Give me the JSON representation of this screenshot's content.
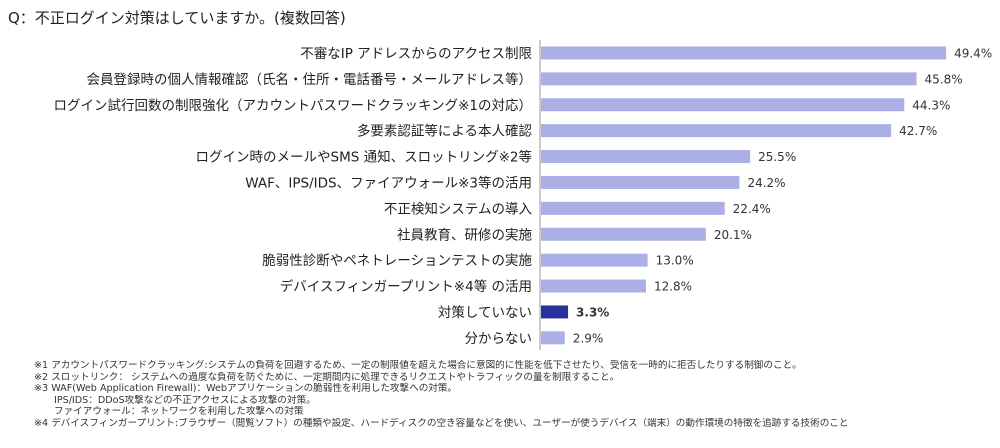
{
  "question": "Q：不正ログイン対策はしていますか。(複数回答)",
  "chart_data": {
    "type": "bar",
    "orientation": "horizontal",
    "title": "Q：不正ログイン対策はしていますか。(複数回答)",
    "categories": [
      "不審なIP アドレスからのアクセス制限",
      "会員登録時の個人情報確認（氏名・住所・電話番号・メールアドレス等）",
      "ログイン試行回数の制限強化（アカウントパスワードクラッキング※1の対応）",
      "多要素認証等による本人確認",
      "ログイン時のメールやSMS 通知、スロットリング※2等",
      "WAF、IPS/IDS、ファイアウォール※3等の活用",
      "不正検知システムの導入",
      "社員教育、研修の実施",
      "脆弱性診断やペネトレーションテストの実施",
      "デバイスフィンガープリント※4等 の活用",
      "対策していない",
      "分からない"
    ],
    "values": [
      49.4,
      45.8,
      44.3,
      42.7,
      25.5,
      24.2,
      22.4,
      20.1,
      13.0,
      12.8,
      3.3,
      2.9
    ],
    "value_labels": [
      "49.4%",
      "45.8%",
      "44.3%",
      "42.7%",
      "25.5%",
      "24.2%",
      "22.4%",
      "20.1%",
      "13.0%",
      "12.8%",
      "3.3%",
      "2.9%"
    ],
    "highlight_index": 10,
    "xlim": [
      0,
      50
    ],
    "xlabel": "",
    "ylabel": "",
    "grid": false,
    "colors": {
      "bar": "#aab0e6",
      "highlight": "#27319a",
      "axis": "#999999"
    }
  },
  "footnotes": [
    "※1 アカウントパスワードクラッキング:システムの負荷を回避するため、一定の制限値を超えた場合に意図的に性能を低下させたり、受信を一時的に拒否したりする制御のこと。",
    "※2 スロットリンク： システムへの過度な負荷を防ぐために、一定期間内に処理できるリクエストやトラフィックの量を制限すること。",
    "※3 WAF(Web Application Firewall)：Webアプリケーションの脆弱性を利用した攻撃への対策。",
    "IPS/IDS：DDoS攻撃などの不正アクセスによる攻撃の対策。",
    "ファイアウォール：ネットワークを利用した攻撃への対策",
    "※4 デバイスフィンガープリント:ブラウザー（閲覧ソフト）の種類や設定、ハードディスクの空き容量などを使い、ユーザーが使うデバイス（端末）の動作環境の特徴を追跡する技術のこと"
  ]
}
